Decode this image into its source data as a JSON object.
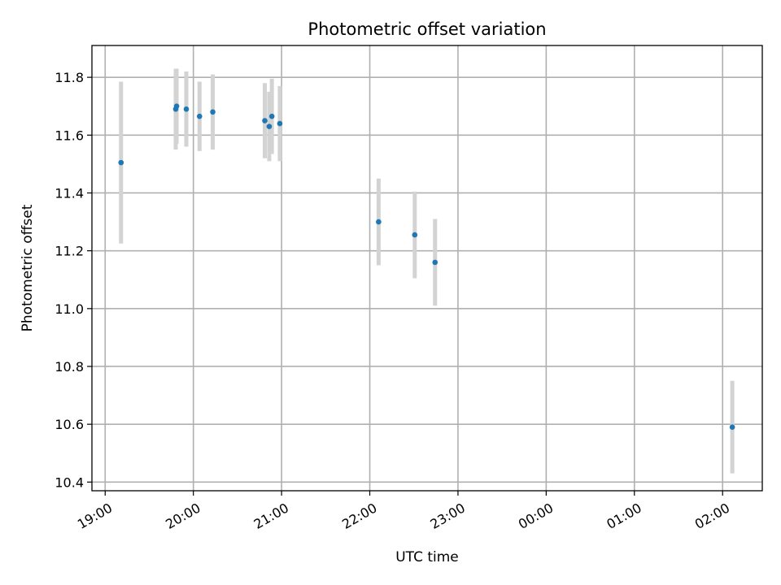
{
  "chart_data": {
    "type": "scatter",
    "title": "Photometric offset variation",
    "xlabel": "UTC time",
    "ylabel": "Photometric offset",
    "x_unit": "UTC time (hours since 19:00)",
    "xlim": [
      -0.15,
      7.45
    ],
    "ylim": [
      10.37,
      11.91
    ],
    "grid": true,
    "x_ticks": [
      {
        "value": 0,
        "label": "19:00"
      },
      {
        "value": 1,
        "label": "20:00"
      },
      {
        "value": 2,
        "label": "21:00"
      },
      {
        "value": 3,
        "label": "22:00"
      },
      {
        "value": 4,
        "label": "23:00"
      },
      {
        "value": 5,
        "label": "00:00"
      },
      {
        "value": 6,
        "label": "01:00"
      },
      {
        "value": 7,
        "label": "02:00"
      }
    ],
    "y_ticks": [
      {
        "value": 10.4,
        "label": "10.4"
      },
      {
        "value": 10.6,
        "label": "10.6"
      },
      {
        "value": 10.8,
        "label": "10.8"
      },
      {
        "value": 11.0,
        "label": "11.0"
      },
      {
        "value": 11.2,
        "label": "11.2"
      },
      {
        "value": 11.4,
        "label": "11.4"
      },
      {
        "value": 11.6,
        "label": "11.6"
      },
      {
        "value": 11.8,
        "label": "11.8"
      }
    ],
    "marker_color": "#1f77b4",
    "errorbar_color": "#d3d3d3",
    "points": [
      {
        "x": 0.18,
        "y": 11.505,
        "err": 0.28
      },
      {
        "x": 0.8,
        "y": 11.69,
        "err": 0.14
      },
      {
        "x": 0.81,
        "y": 11.7,
        "err": 0.13
      },
      {
        "x": 0.92,
        "y": 11.69,
        "err": 0.13
      },
      {
        "x": 1.07,
        "y": 11.665,
        "err": 0.12
      },
      {
        "x": 1.22,
        "y": 11.68,
        "err": 0.13
      },
      {
        "x": 1.81,
        "y": 11.65,
        "err": 0.13
      },
      {
        "x": 1.86,
        "y": 11.63,
        "err": 0.12
      },
      {
        "x": 1.89,
        "y": 11.665,
        "err": 0.13
      },
      {
        "x": 1.98,
        "y": 11.64,
        "err": 0.13
      },
      {
        "x": 3.1,
        "y": 11.3,
        "err": 0.15
      },
      {
        "x": 3.51,
        "y": 11.255,
        "err": 0.15
      },
      {
        "x": 3.74,
        "y": 11.16,
        "err": 0.15
      },
      {
        "x": 7.11,
        "y": 10.59,
        "err": 0.16
      }
    ]
  }
}
